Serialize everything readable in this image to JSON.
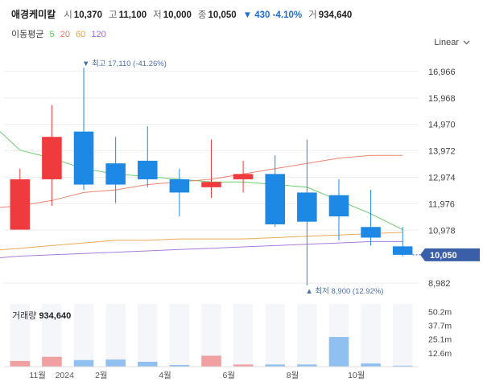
{
  "header": {
    "name": "애경케미칼",
    "open_label": "시",
    "open": "10,370",
    "high_label": "고",
    "high": "11,100",
    "low_label": "저",
    "low": "10,000",
    "close_label": "종",
    "close": "10,050",
    "change": "▼ 430 -4.10%",
    "volume_label": "거",
    "volume": "934,640",
    "change_color": "#1e6fd9"
  },
  "ma_legend": {
    "title": "이동평균",
    "periods": [
      {
        "label": "5",
        "color": "#5cc65c"
      },
      {
        "label": "20",
        "color": "#e8795f"
      },
      {
        "label": "60",
        "color": "#e8a244"
      },
      {
        "label": "120",
        "color": "#9b6fd9"
      }
    ]
  },
  "scale_select": {
    "value": "Linear",
    "icon": "chevron-down-icon"
  },
  "price_axis_labels": [
    "16,966",
    "15,968",
    "14,970",
    "13,972",
    "12,974",
    "11,976",
    "10,978",
    "8,982"
  ],
  "current_price_label": "10,050",
  "max_annotation": "▼ 최고 17,110 (-41.26%)",
  "min_annotation": "▲ 최저 8,900 (12.92%)",
  "volume_title": "거래량",
  "volume_value": "934,640",
  "volume_axis_labels": [
    "50.2m",
    "37.7m",
    "25.1m",
    "12.6m"
  ],
  "time_axis_labels": [
    "11월",
    "2024",
    "2월",
    "4월",
    "6월",
    "8월",
    "10월"
  ],
  "colors": {
    "up": "#ef3b3e",
    "down": "#1e88e5",
    "up_volume": "#f0a0a0",
    "down_volume": "#90c0f0",
    "current_tag": "#3a5fa8"
  },
  "chart_data": {
    "type": "candlestick",
    "categories": [
      "2023-10",
      "2023-11",
      "2023-12",
      "2024-01",
      "2024-02",
      "2024-03",
      "2024-04",
      "2024-05",
      "2024-06",
      "2024-07",
      "2024-08",
      "2024-09",
      "2024-10"
    ],
    "series": [
      {
        "name": "price",
        "ohlc": [
          [
            11000,
            13300,
            11000,
            12900
          ],
          [
            12900,
            15700,
            11900,
            14500
          ],
          [
            14700,
            17110,
            12500,
            12700
          ],
          [
            13500,
            14500,
            12000,
            12700
          ],
          [
            13600,
            14900,
            12600,
            12900
          ],
          [
            12900,
            13300,
            11500,
            12400
          ],
          [
            12600,
            14400,
            12200,
            12800
          ],
          [
            12900,
            13600,
            12400,
            13100
          ],
          [
            13100,
            13800,
            11100,
            11200
          ],
          [
            12400,
            14400,
            8900,
            11300
          ],
          [
            12300,
            12900,
            10600,
            11500
          ],
          [
            11100,
            12500,
            10400,
            10700
          ],
          [
            10370,
            11100,
            10000,
            10050
          ]
        ]
      },
      {
        "name": "5",
        "values": [
          14000,
          13700,
          13300,
          13100,
          13000,
          12900,
          12800,
          12800,
          12700,
          12600,
          12100,
          11600,
          11000
        ]
      },
      {
        "name": "20",
        "values": [
          11900,
          12100,
          12400,
          12500,
          12700,
          12800,
          12900,
          13100,
          13300,
          13500,
          13700,
          13800,
          13800
        ]
      },
      {
        "name": "60",
        "values": [
          10300,
          10400,
          10500,
          10600,
          10600,
          10650,
          10650,
          10650,
          10700,
          10750,
          10800,
          10850,
          10900
        ]
      },
      {
        "name": "120",
        "values": [
          10000,
          10050,
          10100,
          10150,
          10200,
          10250,
          10300,
          10350,
          10400,
          10450,
          10500,
          10550,
          10550
        ]
      },
      {
        "name": "거래량",
        "values": [
          5.2,
          9.0,
          6.0,
          6.5,
          4.5,
          1.5,
          10.0,
          2.0,
          2.0,
          2.0,
          27.0,
          3.0,
          0.93
        ]
      }
    ],
    "ylim": [
      8500,
      17600
    ],
    "volume_ylim": [
      0,
      57
    ]
  }
}
